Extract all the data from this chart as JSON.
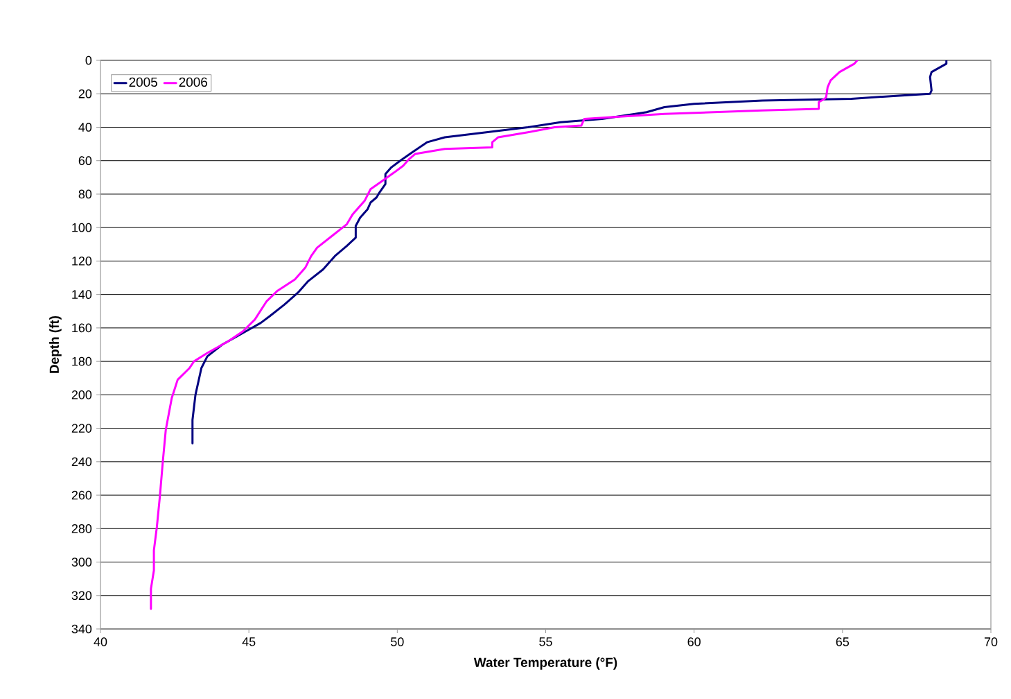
{
  "chart_data": {
    "type": "line",
    "xlabel": "Water Temperature (°F)",
    "ylabel": "Depth (ft)",
    "xlim": [
      40,
      70
    ],
    "xticks": [
      40,
      45,
      50,
      55,
      60,
      65,
      70
    ],
    "ylim": [
      340,
      0
    ],
    "yticks": [
      0,
      20,
      40,
      60,
      80,
      100,
      120,
      140,
      160,
      180,
      200,
      220,
      240,
      260,
      280,
      300,
      320,
      340
    ],
    "grid": "y",
    "legend": "top left",
    "line_style": "solid",
    "series": [
      {
        "name": "2005",
        "color": "#000080",
        "x": [
          68.5,
          68.5,
          68.0,
          67.95,
          68.0,
          67.95,
          67.0,
          65.3,
          62.3,
          60.0,
          59.0,
          58.4,
          56.9,
          55.5,
          54.4,
          53.0,
          51.6,
          51.0,
          50.5,
          50.1,
          49.8,
          49.6,
          49.6,
          49.4,
          49.3,
          49.1,
          49.0,
          48.75,
          48.6,
          48.6,
          48.3,
          47.9,
          47.5,
          47.0,
          46.65,
          46.2,
          45.7,
          45.4,
          44.9,
          44.6,
          44.1,
          43.6,
          43.4,
          43.3,
          43.2,
          43.1,
          43.1
        ],
        "values": [
          0,
          2,
          7,
          10,
          18,
          20,
          21,
          23,
          24,
          26,
          28,
          31,
          35,
          37,
          40,
          43,
          46,
          49,
          55,
          60,
          64,
          68,
          74,
          79,
          82,
          85,
          89,
          94,
          99,
          106,
          111,
          117,
          125,
          132,
          139,
          146,
          153,
          157,
          162,
          165,
          170,
          177,
          184,
          192,
          200,
          215,
          229
        ]
      },
      {
        "name": "2006",
        "color": "#ff00ff",
        "x": [
          65.5,
          65.4,
          64.9,
          64.6,
          64.5,
          64.45,
          64.4,
          64.2,
          64.2,
          62.3,
          59.0,
          57.2,
          56.3,
          56.2,
          55.3,
          54.4,
          53.4,
          53.2,
          53.2,
          51.6,
          50.6,
          50.4,
          50.2,
          49.9,
          49.5,
          49.1,
          48.9,
          48.5,
          48.3,
          47.8,
          47.3,
          47.1,
          46.9,
          46.55,
          45.95,
          45.6,
          45.2,
          44.8,
          44.3,
          43.6,
          43.15,
          43.0,
          42.6,
          42.4,
          42.2,
          42.1,
          42.0,
          41.9,
          41.8,
          41.8,
          41.7,
          41.7
        ],
        "values": [
          0,
          2,
          7,
          12,
          16,
          22,
          23,
          25,
          29,
          30,
          32,
          34,
          35,
          39,
          40,
          43,
          46,
          49,
          52,
          53,
          56,
          59,
          63,
          67,
          72,
          77,
          84,
          92,
          98,
          105,
          112,
          117,
          124,
          131,
          138,
          144,
          155,
          162,
          168,
          175,
          180,
          184,
          191,
          202,
          221,
          240,
          261,
          279,
          293,
          305,
          316,
          328
        ]
      }
    ]
  }
}
